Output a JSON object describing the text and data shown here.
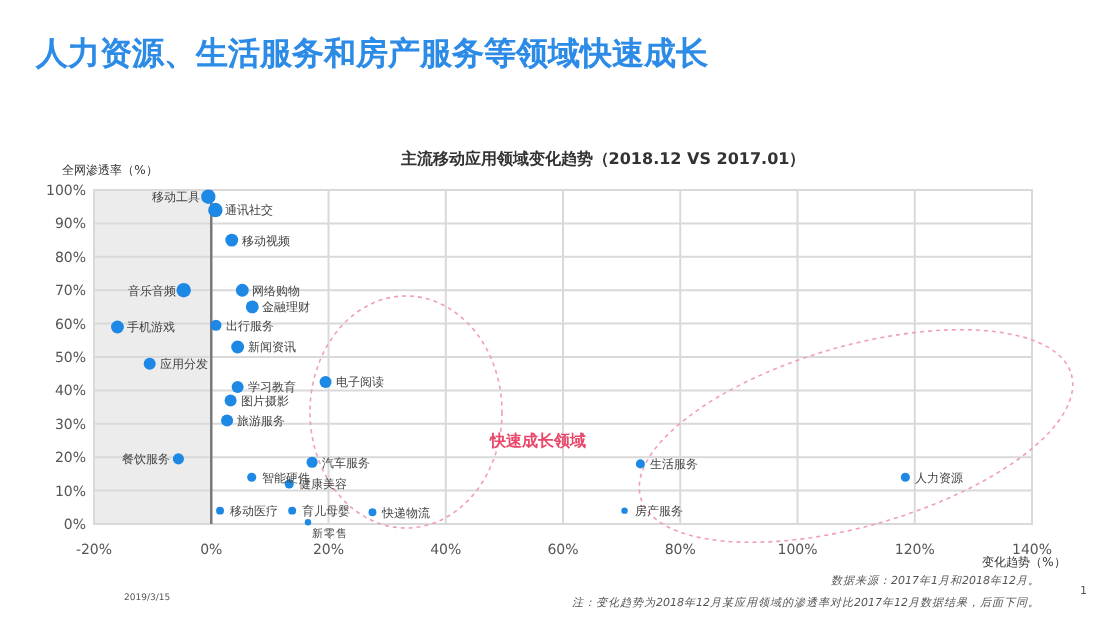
{
  "chart_data": {
    "type": "bubble",
    "title": "人力资源、生活服务和房产服务等领域快速成长",
    "subtitle": "主流移动应用领域变化趋势（2018.12 VS 2017.01）",
    "xlabel": "变化趋势（%）",
    "ylabel": "全网渗透率（%）",
    "xlim": [
      -20,
      140
    ],
    "xticks": [
      {
        "value": -20,
        "label": "-20%"
      },
      {
        "value": 0,
        "label": "0%"
      },
      {
        "value": 20,
        "label": "20%"
      },
      {
        "value": 40,
        "label": "40%"
      },
      {
        "value": 60,
        "label": "60%"
      },
      {
        "value": 80,
        "label": "80%"
      },
      {
        "value": 100,
        "label": "100%"
      },
      {
        "value": 120,
        "label": "120%"
      },
      {
        "value": 140,
        "label": "140%"
      }
    ],
    "ylim": [
      0,
      100
    ],
    "yticks": [
      {
        "value": 0,
        "label": "0%"
      },
      {
        "value": 10,
        "label": "10%"
      },
      {
        "value": 20,
        "label": "20%"
      },
      {
        "value": 30,
        "label": "30%"
      },
      {
        "value": 40,
        "label": "40%"
      },
      {
        "value": 50,
        "label": "50%"
      },
      {
        "value": 60,
        "label": "60%"
      },
      {
        "value": 70,
        "label": "70%"
      },
      {
        "value": 80,
        "label": "80%"
      },
      {
        "value": 90,
        "label": "90%"
      },
      {
        "value": 100,
        "label": "100%"
      }
    ],
    "grid": true,
    "series": [
      {
        "color": "#1e88e5",
        "x": [
          -0.5,
          0.7,
          3.5,
          -4.7,
          5.3,
          7,
          -16,
          0.8,
          4.5,
          -10.5,
          4.5,
          19.5,
          3.3,
          2.7,
          -5.6,
          17.2,
          6.9,
          13.3,
          1.5,
          13.8,
          27.5,
          16.5,
          73.2,
          118.4,
          70.5
        ],
        "values": [
          98,
          94,
          85,
          70,
          70,
          65,
          59,
          59.5,
          53,
          48,
          41,
          42.5,
          37,
          31,
          19.5,
          18.5,
          14,
          12,
          4,
          4,
          3.5,
          0.5,
          18,
          14,
          4
        ],
        "sizes": [
          1,
          1,
          0.8,
          1,
          0.8,
          0.8,
          0.8,
          0.6,
          0.8,
          0.7,
          0.7,
          0.7,
          0.7,
          0.7,
          0.6,
          0.6,
          0.4,
          0.4,
          0.3,
          0.3,
          0.3,
          0.2,
          0.4,
          0.4,
          0.2
        ]
      }
    ],
    "bands": [
      {
        "axis": "x",
        "from": -20,
        "to": 0,
        "color": "#ececec"
      }
    ],
    "ref_lines": [
      {
        "axis": "x",
        "value": 0,
        "color": "#777777"
      }
    ],
    "annotations": [
      {
        "text": "移动工具",
        "x": -0.5,
        "y": 98
      },
      {
        "text": "通讯社交",
        "x": 0.7,
        "y": 94
      },
      {
        "text": "移动视频",
        "x": 3.5,
        "y": 85
      },
      {
        "text": "音乐音频",
        "x": -4.7,
        "y": 70
      },
      {
        "text": "网络购物",
        "x": 5.3,
        "y": 70
      },
      {
        "text": "金融理财",
        "x": 7,
        "y": 65
      },
      {
        "text": "手机游戏",
        "x": -16,
        "y": 59
      },
      {
        "text": "出行服务",
        "x": 0.8,
        "y": 59.5
      },
      {
        "text": "新闻资讯",
        "x": 4.5,
        "y": 53
      },
      {
        "text": "应用分发",
        "x": -10.5,
        "y": 48
      },
      {
        "text": "学习教育",
        "x": 4.5,
        "y": 41
      },
      {
        "text": "电子阅读",
        "x": 19.5,
        "y": 42.5
      },
      {
        "text": "图片摄影",
        "x": 3.3,
        "y": 37
      },
      {
        "text": "旅游服务",
        "x": 2.7,
        "y": 31
      },
      {
        "text": "餐饮服务",
        "x": -5.6,
        "y": 19.5
      },
      {
        "text": "汽车服务",
        "x": 17.2,
        "y": 18.5
      },
      {
        "text": "智能硬件",
        "x": 6.9,
        "y": 14
      },
      {
        "text": "健康美容",
        "x": 13.3,
        "y": 12
      },
      {
        "text": "移动医疗",
        "x": 1.5,
        "y": 4
      },
      {
        "text": "育儿母婴",
        "x": 13.8,
        "y": 4
      },
      {
        "text": "快递物流",
        "x": 27.5,
        "y": 3.5
      },
      {
        "text": "新零售",
        "x": 16.5,
        "y": 0.5
      },
      {
        "text": "生活服务",
        "x": 73.2,
        "y": 18
      },
      {
        "text": "人力资源",
        "x": 118.4,
        "y": 14
      },
      {
        "text": "房产服务",
        "x": 70.5,
        "y": 4
      },
      "快速成长领域",
      "数据来源：2017年1月和2018年12月。",
      "注：变化趋势为2018年12月某应用领域的渗透率对比2017年12月数据结果，后面下同。",
      "2019/3/15",
      "1"
    ]
  }
}
